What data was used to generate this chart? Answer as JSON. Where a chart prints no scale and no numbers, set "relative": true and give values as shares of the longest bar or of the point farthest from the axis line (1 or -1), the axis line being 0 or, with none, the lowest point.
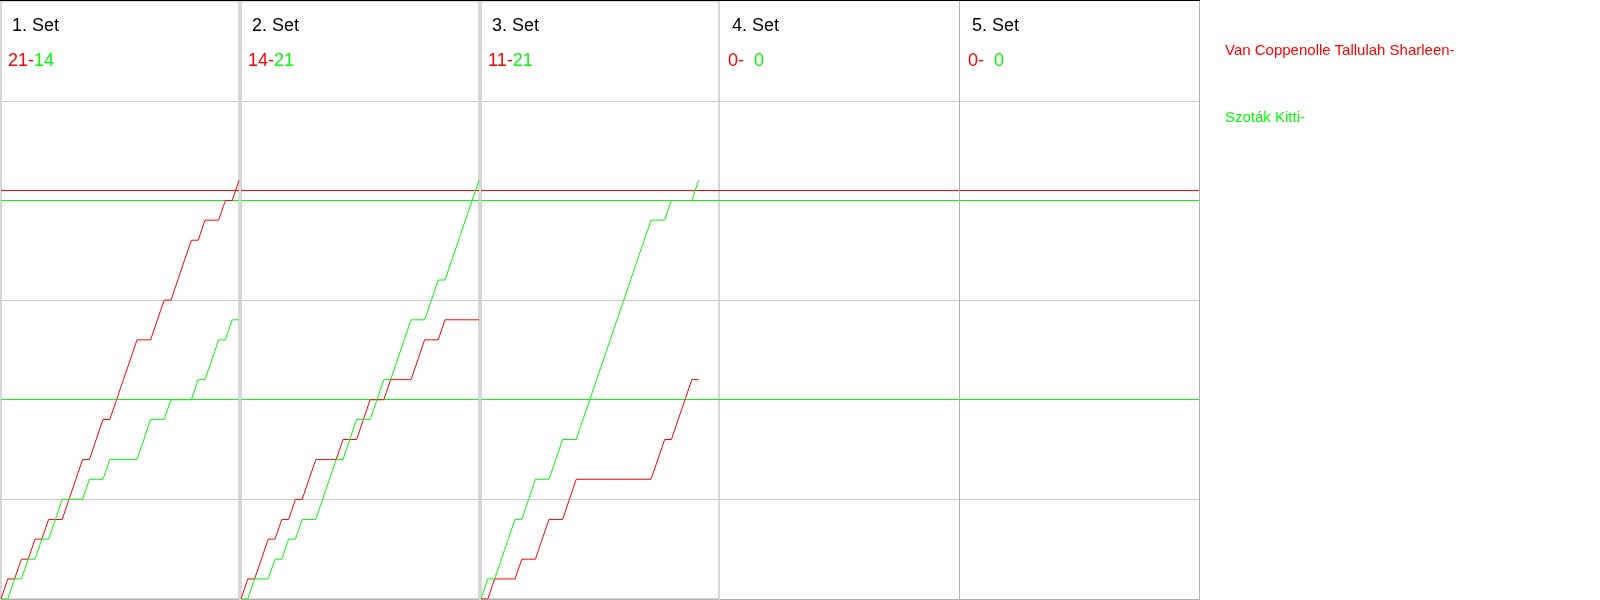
{
  "chart_data": [
    {
      "type": "line",
      "title": "1. Set",
      "annotations": [
        "21-",
        "14"
      ],
      "relative": true,
      "categories": [
        null,
        null,
        null,
        null,
        null,
        null,
        null,
        null,
        null,
        null,
        null,
        null,
        null,
        null,
        null,
        null,
        null,
        null,
        null,
        null,
        null,
        null,
        null,
        null,
        null,
        null,
        null,
        null,
        null,
        null,
        null,
        null,
        null,
        null,
        null,
        null
      ],
      "series": [
        {
          "color": "#ff0000",
          "values": [
            0,
            0.048,
            0.048,
            0.095,
            0.095,
            0.143,
            0.143,
            0.19,
            0.19,
            0.19,
            0.238,
            0.286,
            0.333,
            0.333,
            0.381,
            0.429,
            0.429,
            0.476,
            0.524,
            0.571,
            0.619,
            0.619,
            0.619,
            0.667,
            0.714,
            0.714,
            0.762,
            0.81,
            0.857,
            0.857,
            0.905,
            0.905,
            0.905,
            0.952,
            0.952,
            1
          ]
        },
        {
          "color": "#00ff00",
          "values": [
            0,
            0,
            0.048,
            0.048,
            0.095,
            0.095,
            0.143,
            0.143,
            0.19,
            0.238,
            0.238,
            0.238,
            0.238,
            0.286,
            0.286,
            0.286,
            0.333,
            0.333,
            0.333,
            0.333,
            0.333,
            0.381,
            0.429,
            0.429,
            0.429,
            0.476,
            0.476,
            0.476,
            0.476,
            0.524,
            0.524,
            0.571,
            0.619,
            0.619,
            0.667,
            0.667
          ]
        }
      ],
      "tick_labels": false,
      "ref_lines": [
        {
          "axis": "y",
          "value": 0.238,
          "color": "#cccccc"
        },
        {
          "axis": "y",
          "value": 0.714,
          "color": "#cccccc"
        },
        {
          "axis": "y",
          "value": 1.19,
          "color": "#cccccc"
        },
        {
          "axis": "y",
          "value": 0.976,
          "color": "#ff0000"
        },
        {
          "axis": "y",
          "value": 0.952,
          "color": "#00ff00"
        },
        {
          "axis": "y",
          "value": 0.476,
          "color": "#00ff00"
        }
      ]
    },
    {
      "type": "line",
      "title": "2. Set",
      "annotations": [
        "14-",
        "21"
      ],
      "relative": true,
      "categories": [
        null,
        null,
        null,
        null,
        null,
        null,
        null,
        null,
        null,
        null,
        null,
        null,
        null,
        null,
        null,
        null,
        null,
        null,
        null,
        null,
        null,
        null,
        null,
        null,
        null,
        null,
        null,
        null,
        null,
        null,
        null,
        null,
        null,
        null,
        null,
        null
      ],
      "series": [
        {
          "color": "#ff0000",
          "values": [
            0,
            0.048,
            0.048,
            0.095,
            0.143,
            0.143,
            0.19,
            0.19,
            0.238,
            0.238,
            0.286,
            0.333,
            0.333,
            0.333,
            0.333,
            0.381,
            0.381,
            0.381,
            0.429,
            0.476,
            0.476,
            0.476,
            0.524,
            0.524,
            0.524,
            0.524,
            0.571,
            0.619,
            0.619,
            0.619,
            0.667,
            0.667,
            0.667,
            0.667,
            0.667,
            0.667
          ]
        },
        {
          "color": "#00ff00",
          "values": [
            0,
            0,
            0.048,
            0.048,
            0.048,
            0.095,
            0.095,
            0.143,
            0.143,
            0.19,
            0.19,
            0.19,
            0.238,
            0.286,
            0.333,
            0.333,
            0.381,
            0.429,
            0.429,
            0.429,
            0.476,
            0.524,
            0.524,
            0.571,
            0.619,
            0.667,
            0.667,
            0.667,
            0.714,
            0.762,
            0.762,
            0.81,
            0.857,
            0.905,
            0.952,
            1
          ]
        }
      ],
      "tick_labels": false,
      "ref_lines": [
        {
          "axis": "y",
          "value": 0.238,
          "color": "#cccccc"
        },
        {
          "axis": "y",
          "value": 0.714,
          "color": "#cccccc"
        },
        {
          "axis": "y",
          "value": 1.19,
          "color": "#cccccc"
        },
        {
          "axis": "y",
          "value": 0.976,
          "color": "#ff0000"
        },
        {
          "axis": "y",
          "value": 0.952,
          "color": "#00ff00"
        },
        {
          "axis": "y",
          "value": 0.476,
          "color": "#00ff00"
        }
      ]
    },
    {
      "type": "line",
      "title": "3. Set",
      "annotations": [
        "11-",
        "21"
      ],
      "relative": true,
      "categories": [
        null,
        null,
        null,
        null,
        null,
        null,
        null,
        null,
        null,
        null,
        null,
        null,
        null,
        null,
        null,
        null,
        null,
        null,
        null,
        null,
        null,
        null,
        null,
        null,
        null,
        null,
        null,
        null,
        null,
        null,
        null,
        null,
        null,
        null,
        null,
        null
      ],
      "series": [
        {
          "name": "Van Coppenolle Tallulah Sharleen-",
          "color": "#ff0000",
          "values": [
            0,
            0,
            0.048,
            0.048,
            0.048,
            0.048,
            0.095,
            0.095,
            0.095,
            0.143,
            0.19,
            0.19,
            0.19,
            0.238,
            0.286,
            0.286,
            0.286,
            0.286,
            0.286,
            0.286,
            0.286,
            0.286,
            0.286,
            0.286,
            0.286,
            0.286,
            0.333,
            0.381,
            0.381,
            0.429,
            0.476,
            0.524,
            0.524,
            null,
            null,
            null
          ]
        },
        {
          "name": "Szoták Kitti-",
          "color": "#00ff00",
          "values": [
            0,
            0.048,
            0.048,
            0.095,
            0.143,
            0.19,
            0.19,
            0.238,
            0.286,
            0.286,
            0.286,
            0.333,
            0.381,
            0.381,
            0.381,
            0.429,
            0.476,
            0.524,
            0.571,
            0.619,
            0.667,
            0.714,
            0.762,
            0.81,
            0.857,
            0.905,
            0.905,
            0.905,
            0.952,
            0.952,
            0.952,
            0.952,
            1,
            null,
            null,
            null
          ]
        }
      ],
      "tick_labels": false,
      "ref_lines": [
        {
          "axis": "y",
          "value": 0.238,
          "color": "#cccccc"
        },
        {
          "axis": "y",
          "value": 0.714,
          "color": "#cccccc"
        },
        {
          "axis": "y",
          "value": 1.19,
          "color": "#cccccc"
        },
        {
          "axis": "y",
          "value": 0.976,
          "color": "#ff0000"
        },
        {
          "axis": "y",
          "value": 0.952,
          "color": "#00ff00"
        },
        {
          "axis": "y",
          "value": 0.476,
          "color": "#00ff00"
        }
      ]
    },
    {
      "type": "other",
      "title": "4. Set",
      "annotations": [
        "0-",
        "0"
      ]
    },
    {
      "type": "other",
      "title": "5. Set",
      "annotations": [
        "0-",
        "0"
      ]
    }
  ]
}
